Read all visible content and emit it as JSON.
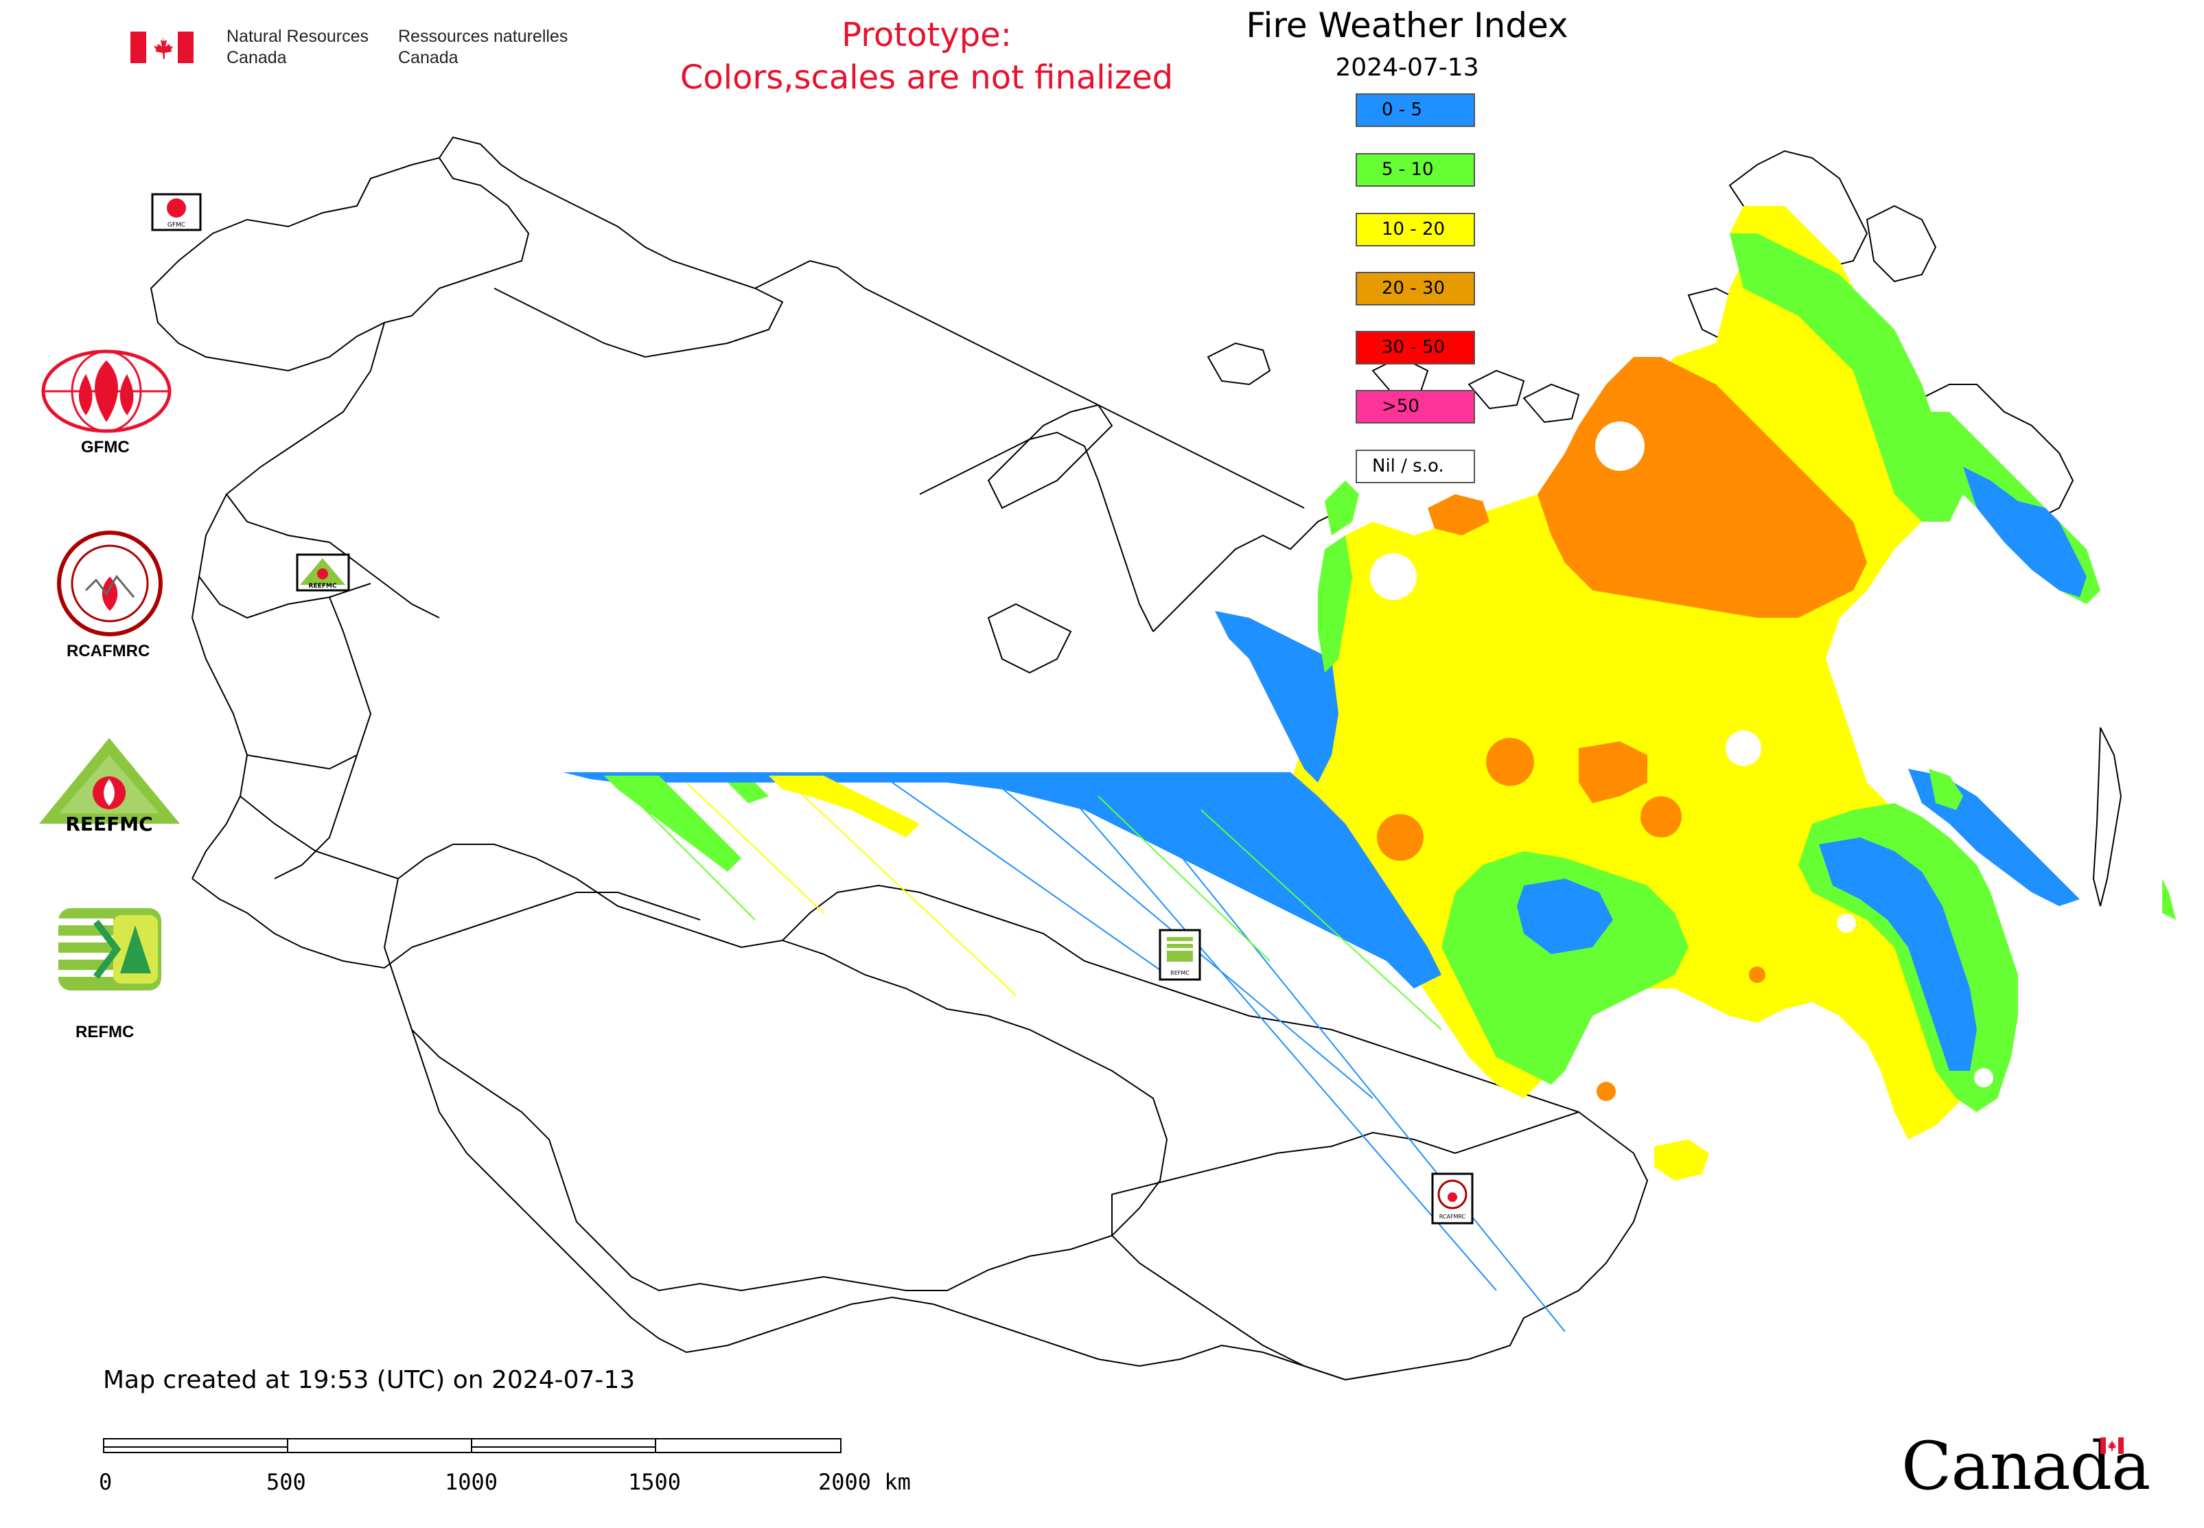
{
  "header": {
    "department_en_line1": "Natural Resources",
    "department_en_line2": "Canada",
    "department_fr_line1": "Ressources naturelles",
    "department_fr_line2": "Canada"
  },
  "notice": {
    "line1": "Prototype:",
    "line2": "Colors,scales are not finalized"
  },
  "map": {
    "title": "Fire Weather Index",
    "date": "2024-07-13",
    "legend": [
      {
        "label": "0 - 5",
        "color": "#1e90ff"
      },
      {
        "label": "5 - 10",
        "color": "#66ff33"
      },
      {
        "label": "10 - 20",
        "color": "#ffff00"
      },
      {
        "label": "20 - 30",
        "color": "#e69b00"
      },
      {
        "label": "30 - 50",
        "color": "#ff0000"
      },
      {
        "label": ">50",
        "color": "#ff3399"
      },
      {
        "label": "Nil / s.o.",
        "color": "#ffffff"
      }
    ],
    "map_icons": [
      "GFMC",
      "REEFMC",
      "REFMC",
      "RCAFMRC"
    ]
  },
  "side_logos": [
    {
      "label": "GFMC",
      "icon": "gfmc-logo"
    },
    {
      "label": "RCAFMRC",
      "icon": "rcafmrc-logo"
    },
    {
      "label": "",
      "icon": "reefmc-logo",
      "text_in_logo": "REEFMC"
    },
    {
      "label": "REFMC",
      "icon": "refmc-logo"
    }
  ],
  "footer": {
    "created": "Map created at 19:53 (UTC) on 2024-07-13",
    "scale_labels": [
      "0",
      "500",
      "1000",
      "1500",
      "2000 km"
    ],
    "wordmark": "Canada"
  }
}
